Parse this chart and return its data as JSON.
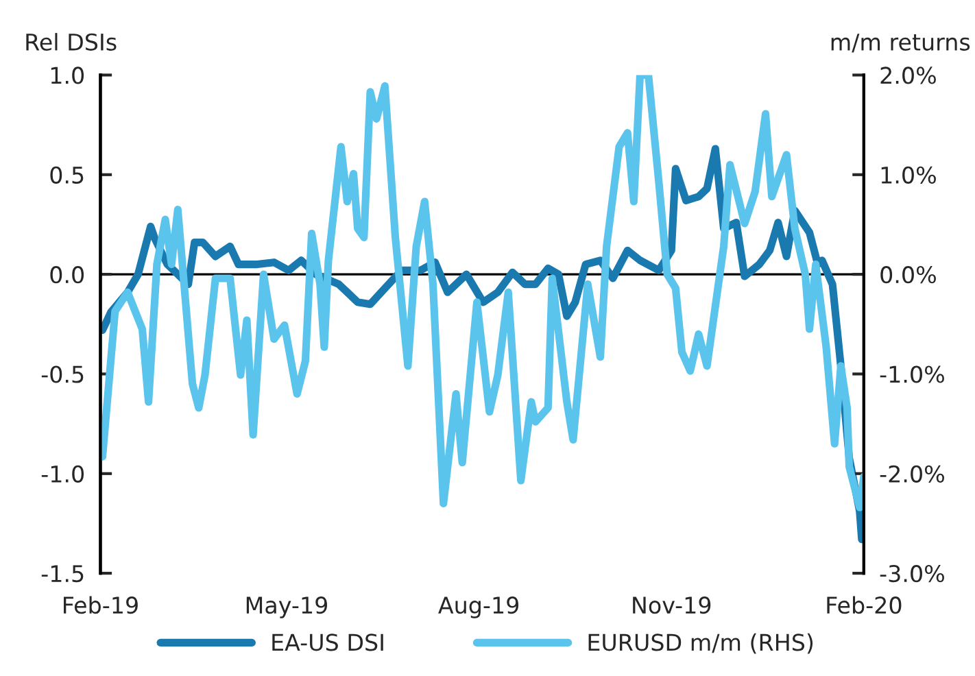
{
  "chart_data": {
    "type": "line",
    "ylabel": "Rel DSIs",
    "y2label": "m/m returns",
    "xlim": [
      "2019-02-01",
      "2020-02-01"
    ],
    "xticks": [
      {
        "value": "2019-02-01",
        "label": "Feb-19"
      },
      {
        "value": "2019-05-01",
        "label": "May-19"
      },
      {
        "value": "2019-08-01",
        "label": "Aug-19"
      },
      {
        "value": "2019-11-01",
        "label": "Nov-19"
      },
      {
        "value": "2020-02-01",
        "label": "Feb-20"
      }
    ],
    "ylim": [
      -1.5,
      1.0
    ],
    "yticks": [
      {
        "value": -1.5,
        "label": "-1.5"
      },
      {
        "value": -1.0,
        "label": "-1.0"
      },
      {
        "value": -0.5,
        "label": "-0.5"
      },
      {
        "value": 0,
        "label": "0.0"
      },
      {
        "value": 0.5,
        "label": "0.5"
      },
      {
        "value": 1.0,
        "label": "1.0"
      }
    ],
    "y2lim": [
      -3.0,
      2.0
    ],
    "y2ticks": [
      {
        "value": -3.0,
        "label": "-3.0%"
      },
      {
        "value": -2.0,
        "label": "-2.0%"
      },
      {
        "value": -1.0,
        "label": "-1.0%"
      },
      {
        "value": 0,
        "label": "0.0%"
      },
      {
        "value": 1.0,
        "label": "1.0%"
      },
      {
        "value": 2.0,
        "label": "2.0%"
      }
    ],
    "ref_lines": [
      {
        "axis": "y",
        "value": 0,
        "color": "#000000"
      }
    ],
    "legend": "bottom",
    "grid": false,
    "line_style": "solid",
    "marker": "none",
    "series": [
      {
        "name": "EA-US DSI",
        "color": "#1a7ab0",
        "x": [
          "2019-02-02",
          "2019-02-06",
          "2019-02-14",
          "2019-02-19",
          "2019-02-22",
          "2019-02-25",
          "2019-02-27",
          "2019-03-05",
          "2019-03-15",
          "2019-03-18",
          "2019-03-22",
          "2019-03-28",
          "2019-04-04",
          "2019-04-08",
          "2019-04-17",
          "2019-04-25",
          "2019-05-02",
          "2019-05-08",
          "2019-05-15",
          "2019-05-26",
          "2019-06-04",
          "2019-06-10",
          "2019-06-17",
          "2019-06-25",
          "2019-07-04",
          "2019-07-11",
          "2019-07-17",
          "2019-07-26",
          "2019-08-03",
          "2019-08-10",
          "2019-08-17",
          "2019-08-23",
          "2019-08-28",
          "2019-09-03",
          "2019-09-08",
          "2019-09-12",
          "2019-09-16",
          "2019-09-21",
          "2019-09-28",
          "2019-10-04",
          "2019-10-11",
          "2019-10-17",
          "2019-10-26",
          "2019-11-01",
          "2019-11-03",
          "2019-11-08",
          "2019-11-14",
          "2019-11-18",
          "2019-11-22",
          "2019-11-26",
          "2019-12-02",
          "2019-12-06",
          "2019-12-13",
          "2019-12-18",
          "2019-12-22",
          "2019-12-26",
          "2019-12-30",
          "2020-01-06",
          "2020-01-10",
          "2020-01-12",
          "2020-01-17",
          "2020-01-21",
          "2020-01-25",
          "2020-01-30",
          "2020-01-31"
        ],
        "values": [
          -0.28,
          -0.19,
          -0.09,
          0,
          0.12,
          0.24,
          0.18,
          0.05,
          -0.05,
          0.16,
          0.16,
          0.09,
          0.14,
          0.05,
          0.05,
          0.06,
          0.02,
          0.07,
          0,
          -0.05,
          -0.14,
          -0.15,
          -0.07,
          0.02,
          0.02,
          0.06,
          -0.09,
          0,
          -0.14,
          -0.09,
          0.01,
          -0.05,
          -0.05,
          0.03,
          0,
          -0.21,
          -0.14,
          0.05,
          0.07,
          -0.02,
          0.12,
          0.07,
          0.02,
          0.12,
          0.53,
          0.37,
          0.39,
          0.43,
          0.63,
          0.23,
          0.26,
          -0.01,
          0.05,
          0.12,
          0.26,
          0.09,
          0.32,
          0.21,
          0.05,
          0.07,
          -0.05,
          -0.46,
          -0.92,
          -1.19,
          -1.33
        ]
      },
      {
        "name": "EURUSD m/m (RHS)",
        "color": "#5bc4ec",
        "axis": "y2",
        "x": [
          "2019-02-02",
          "2019-02-08",
          "2019-02-14",
          "2019-02-21",
          "2019-02-24",
          "2019-02-28",
          "2019-03-04",
          "2019-03-07",
          "2019-03-10",
          "2019-03-17",
          "2019-03-20",
          "2019-03-23",
          "2019-03-28",
          "2019-04-04",
          "2019-04-09",
          "2019-04-12",
          "2019-04-15",
          "2019-04-20",
          "2019-04-25",
          "2019-04-30",
          "2019-05-06",
          "2019-05-10",
          "2019-05-13",
          "2019-05-17",
          "2019-05-19",
          "2019-05-21",
          "2019-05-27",
          "2019-05-30",
          "2019-06-02",
          "2019-06-04",
          "2019-06-07",
          "2019-06-10",
          "2019-06-13",
          "2019-06-17",
          "2019-06-22",
          "2019-06-28",
          "2019-07-02",
          "2019-07-06",
          "2019-07-10",
          "2019-07-15",
          "2019-07-21",
          "2019-07-24",
          "2019-07-31",
          "2019-08-06",
          "2019-08-10",
          "2019-08-15",
          "2019-08-21",
          "2019-08-26",
          "2019-08-28",
          "2019-09-03",
          "2019-09-05",
          "2019-09-12",
          "2019-09-15",
          "2019-09-22",
          "2019-09-28",
          "2019-10-01",
          "2019-10-07",
          "2019-10-11",
          "2019-10-14",
          "2019-10-17",
          "2019-10-21",
          "2019-10-26",
          "2019-10-30",
          "2019-11-03",
          "2019-11-06",
          "2019-11-10",
          "2019-11-14",
          "2019-11-18",
          "2019-11-26",
          "2019-11-29",
          "2019-12-06",
          "2019-12-11",
          "2019-12-16",
          "2019-12-19",
          "2019-12-26",
          "2019-12-30",
          "2020-01-04",
          "2020-01-06",
          "2020-01-09",
          "2020-01-14",
          "2020-01-18",
          "2020-01-21",
          "2020-01-24",
          "2020-01-25",
          "2020-01-30",
          "2020-02-01"
        ],
        "values": [
          -1.83,
          -0.37,
          -0.18,
          -0.55,
          -1.28,
          0.1,
          0.55,
          0.1,
          0.65,
          -1.1,
          -1.34,
          -1.01,
          -0.04,
          -0.04,
          -1.01,
          -0.46,
          -1.61,
          0,
          -0.65,
          -0.51,
          -1.2,
          -0.87,
          0.41,
          -0.1,
          -0.73,
          0.14,
          1.28,
          0.73,
          1.01,
          0.46,
          0.37,
          1.83,
          1.56,
          1.89,
          0.37,
          -0.92,
          0.28,
          0.73,
          -0.1,
          -2.3,
          -1.2,
          -1.89,
          -0.28,
          -1.38,
          -1.01,
          -0.18,
          -2.07,
          -1.28,
          -1.48,
          -1.34,
          -0.04,
          -1.28,
          -1.66,
          -0.1,
          -0.83,
          0.28,
          1.28,
          1.42,
          0.73,
          2.0,
          2.0,
          0.92,
          0,
          -0.14,
          -0.78,
          -0.97,
          -0.6,
          -0.92,
          0.28,
          1.1,
          0.51,
          0.83,
          1.61,
          0.78,
          1.2,
          0.46,
          0,
          -0.55,
          0.1,
          -0.73,
          -1.7,
          -0.92,
          -1.34,
          -1.93,
          -2.34,
          -2.03
        ]
      }
    ]
  }
}
